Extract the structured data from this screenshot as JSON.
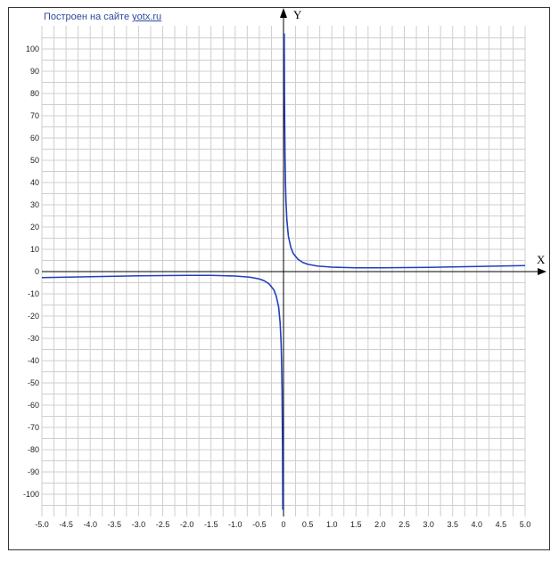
{
  "credit": {
    "prefix": "Построен на сайте",
    "link": "yotx.ru"
  },
  "chart_data": {
    "type": "line",
    "xlabel": "X",
    "ylabel": "Y",
    "xlim": [
      -5.0,
      5.0
    ],
    "ylim": [
      -108,
      108
    ],
    "x_ticks": [
      "-5.0",
      "-4.5",
      "-4.0",
      "-3.5",
      "-3.0",
      "-2.5",
      "-2.0",
      "-1.5",
      "-1.0",
      "-0.5",
      "0",
      "0.5",
      "1.0",
      "1.5",
      "2.0",
      "2.5",
      "3.0",
      "3.5",
      "4.0",
      "4.5",
      "5.0"
    ],
    "y_ticks": [
      "100",
      "90",
      "80",
      "70",
      "60",
      "50",
      "40",
      "30",
      "20",
      "10",
      "0",
      "-10",
      "-20",
      "-30",
      "-40",
      "-50",
      "-60",
      "-70",
      "-80",
      "-90",
      "-100"
    ],
    "grid": true,
    "series": [
      {
        "color": "#1f3fbf",
        "points": [
          [
            -5.0,
            -2.7
          ],
          [
            -4.5,
            -2.5
          ],
          [
            -4.0,
            -2.3
          ],
          [
            -3.5,
            -2.1
          ],
          [
            -3.0,
            -1.9
          ],
          [
            -2.5,
            -1.8
          ],
          [
            -2.0,
            -1.7
          ],
          [
            -1.5,
            -1.7
          ],
          [
            -1.0,
            -2.0
          ],
          [
            -0.7,
            -2.5
          ],
          [
            -0.5,
            -3.3
          ],
          [
            -0.4,
            -4.1
          ],
          [
            -0.3,
            -5.5
          ],
          [
            -0.2,
            -8.2
          ],
          [
            -0.15,
            -11
          ],
          [
            -0.1,
            -16
          ],
          [
            -0.07,
            -23
          ],
          [
            -0.05,
            -32
          ],
          [
            -0.04,
            -40
          ],
          [
            -0.03,
            -53
          ],
          [
            -0.02,
            -80
          ],
          [
            -0.015,
            -107
          ]
        ]
      },
      {
        "color": "#1f3fbf",
        "points": [
          [
            0.015,
            107
          ],
          [
            0.02,
            80
          ],
          [
            0.03,
            53
          ],
          [
            0.04,
            40
          ],
          [
            0.05,
            32
          ],
          [
            0.07,
            23
          ],
          [
            0.1,
            16
          ],
          [
            0.15,
            11
          ],
          [
            0.2,
            8.2
          ],
          [
            0.3,
            5.5
          ],
          [
            0.4,
            4.1
          ],
          [
            0.5,
            3.3
          ],
          [
            0.7,
            2.5
          ],
          [
            1.0,
            2.0
          ],
          [
            1.5,
            1.7
          ],
          [
            2.0,
            1.7
          ],
          [
            2.5,
            1.8
          ],
          [
            3.0,
            1.9
          ],
          [
            3.5,
            2.1
          ],
          [
            4.0,
            2.3
          ],
          [
            4.5,
            2.5
          ],
          [
            5.0,
            2.7
          ]
        ]
      }
    ]
  }
}
